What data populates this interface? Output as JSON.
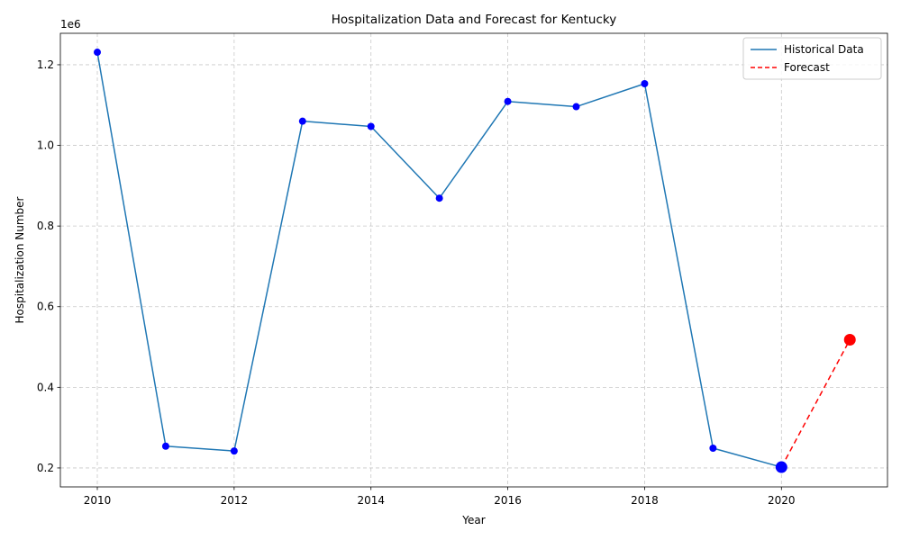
{
  "chart_data": {
    "type": "line",
    "title": "Hospitalization Data and Forecast for Kentucky",
    "xlabel": "Year",
    "ylabel": "Hospitalization Number",
    "y_offset_label": "1e6",
    "xlim": [
      2009.46,
      2021.55
    ],
    "ylim": [
      153000,
      1278000
    ],
    "x_ticks": [
      2010,
      2012,
      2014,
      2016,
      2018,
      2020
    ],
    "x_tick_labels": [
      "2010",
      "2012",
      "2014",
      "2016",
      "2018",
      "2020"
    ],
    "y_ticks": [
      200000,
      400000,
      600000,
      800000,
      1000000,
      1200000
    ],
    "y_tick_labels": [
      "0.2",
      "0.4",
      "0.6",
      "0.8",
      "1.0",
      "1.2"
    ],
    "grid": true,
    "legend_position": "top-right",
    "series": [
      {
        "name": "Historical Data",
        "x": [
          2010,
          2011,
          2012,
          2013,
          2014,
          2015,
          2016,
          2017,
          2018,
          2019,
          2020
        ],
        "y": [
          1231000,
          254000,
          242000,
          1060000,
          1047000,
          869000,
          1109000,
          1096000,
          1153000,
          249000,
          202000
        ],
        "color": "#1f77b4",
        "marker_color": "#0000ff",
        "line_style": "solid"
      },
      {
        "name": "Forecast",
        "x": [
          2020,
          2021
        ],
        "y": [
          202000,
          518000
        ],
        "color": "#ff0000",
        "line_style": "dashed"
      }
    ],
    "highlight_points": [
      {
        "x": 2020,
        "y": 202000,
        "color": "#0000ff"
      },
      {
        "x": 2021,
        "y": 518000,
        "color": "#ff0000"
      }
    ]
  }
}
